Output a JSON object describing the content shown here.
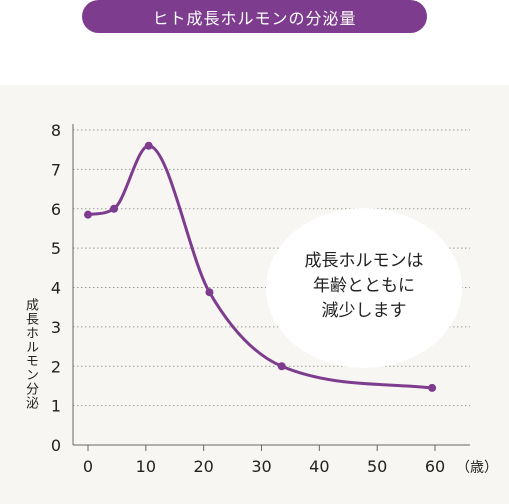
{
  "title": "ヒト成長ホルモンの分泌量",
  "colors": {
    "accent": "#7d3c8e",
    "panel": "#f7f6f2",
    "grid": "#9a9a9a",
    "text": "#222222"
  },
  "callout": {
    "lines": [
      "成長ホルモンは",
      "年齢とともに",
      "減少します"
    ]
  },
  "chart_data": {
    "type": "line",
    "title": "ヒト成長ホルモンの分泌量",
    "xlabel": "（歳）",
    "ylabel": "成長ホルモン分泌",
    "xlim": [
      0,
      60
    ],
    "ylim": [
      0,
      8
    ],
    "x_ticks": [
      0,
      10,
      20,
      30,
      40,
      50,
      60
    ],
    "y_ticks": [
      0,
      1,
      2,
      3,
      4,
      5,
      6,
      7,
      8
    ],
    "grid": "horizontal-dotted",
    "series": [
      {
        "x": [
          0,
          4.5,
          10.5,
          21,
          33.5,
          59.5
        ],
        "y": [
          5.85,
          6.0,
          7.6,
          3.88,
          2.0,
          1.45
        ]
      }
    ]
  }
}
